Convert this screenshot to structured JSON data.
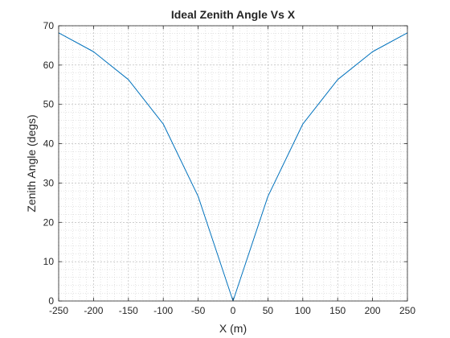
{
  "chart_data": {
    "type": "line",
    "title": "Ideal Zenith Angle Vs X",
    "xlabel": "X (m)",
    "ylabel": "Zenith Angle (degs)",
    "xlim": [
      -250,
      250
    ],
    "ylim": [
      0,
      70
    ],
    "xticks": [
      -250,
      -200,
      -150,
      -100,
      -50,
      0,
      50,
      100,
      150,
      200,
      250
    ],
    "yticks": [
      0,
      10,
      20,
      30,
      40,
      50,
      60,
      70
    ],
    "grid": true,
    "minor_grid": true,
    "legend": "none",
    "series": [
      {
        "color": "#0072bd",
        "x": [
          -250,
          -200,
          -150,
          -100,
          -50,
          0,
          50,
          100,
          150,
          200,
          250
        ],
        "y": [
          68.2,
          63.4,
          56.3,
          45.0,
          26.6,
          0,
          26.6,
          45.0,
          56.3,
          63.4,
          68.2
        ]
      }
    ]
  }
}
